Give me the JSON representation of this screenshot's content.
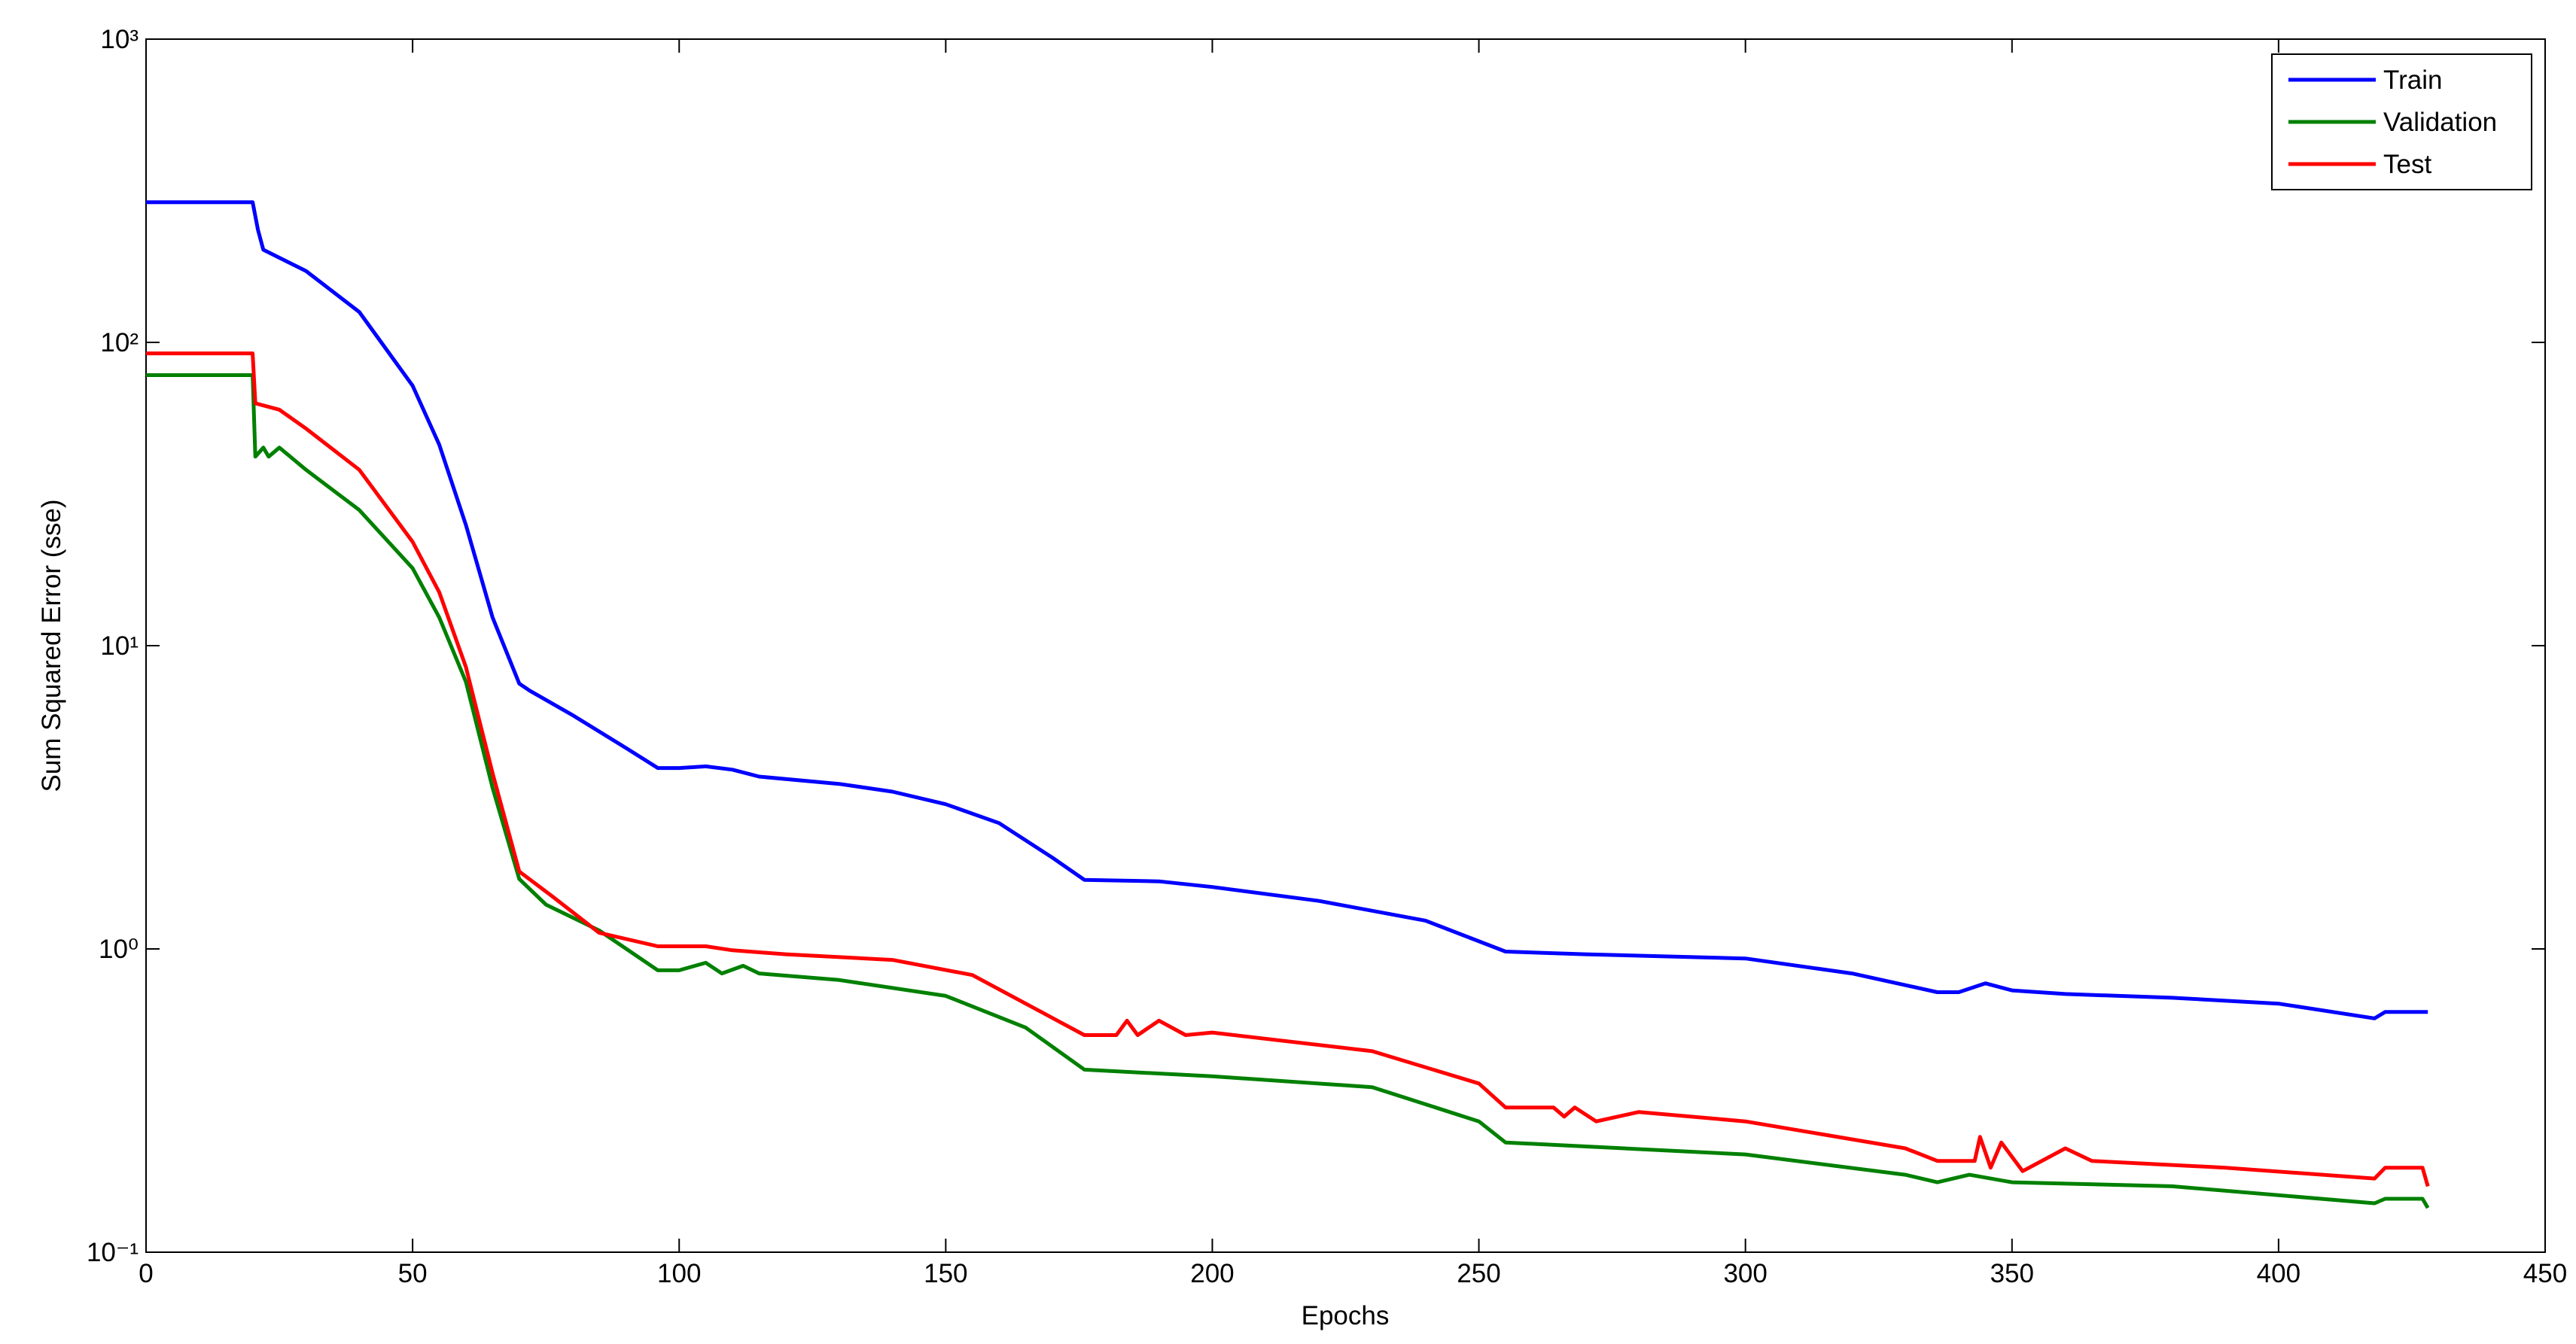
{
  "chart_data": {
    "type": "line",
    "xlabel": "Epochs",
    "ylabel": "Sum Squared Error (sse)",
    "xlim": [
      0,
      450
    ],
    "xticks": [
      0,
      50,
      100,
      150,
      200,
      250,
      300,
      350,
      400,
      450
    ],
    "ylim": [
      0.1,
      1000
    ],
    "yscale": "log",
    "yticks": [
      {
        "value": 0.1,
        "label": "10⁻¹"
      },
      {
        "value": 1,
        "label": "10⁰"
      },
      {
        "value": 10,
        "label": "10¹"
      },
      {
        "value": 100,
        "label": "10²"
      },
      {
        "value": 1000,
        "label": "10³"
      }
    ],
    "grid": false,
    "legend": "upper right",
    "series": [
      {
        "name": "Train",
        "color": "#0000ff",
        "x": [
          0,
          20,
          21,
          22,
          30,
          40,
          50,
          55,
          60,
          65,
          70,
          72,
          80,
          90,
          96,
          100,
          105,
          110,
          115,
          130,
          140,
          150,
          160,
          170,
          176,
          190,
          200,
          220,
          240,
          255,
          270,
          300,
          320,
          336,
          340,
          345,
          350,
          360,
          380,
          400,
          418,
          420,
          428
        ],
        "values": [
          290,
          290,
          235,
          202,
          172,
          126,
          72,
          46,
          25,
          12.4,
          7.5,
          7.1,
          5.9,
          4.6,
          3.95,
          3.95,
          4.0,
          3.9,
          3.7,
          3.5,
          3.3,
          3.0,
          2.6,
          2.0,
          1.69,
          1.67,
          1.6,
          1.44,
          1.24,
          0.98,
          0.96,
          0.93,
          0.83,
          0.72,
          0.72,
          0.77,
          0.73,
          0.71,
          0.69,
          0.66,
          0.59,
          0.62,
          0.62
        ]
      },
      {
        "name": "Validation",
        "color": "#008000",
        "x": [
          0,
          20,
          20.5,
          22,
          23,
          25,
          30,
          40,
          50,
          55,
          60,
          65,
          70,
          75,
          85,
          96,
          100,
          105,
          108,
          112,
          115,
          130,
          150,
          165,
          176,
          200,
          230,
          250,
          255,
          300,
          330,
          336,
          342,
          350,
          380,
          418,
          420,
          427,
          428
        ],
        "values": [
          78,
          78,
          42,
          45,
          42,
          45,
          38,
          28,
          18,
          12.4,
          7.6,
          3.4,
          1.7,
          1.4,
          1.15,
          0.85,
          0.85,
          0.9,
          0.83,
          0.88,
          0.83,
          0.79,
          0.7,
          0.55,
          0.4,
          0.38,
          0.35,
          0.27,
          0.23,
          0.21,
          0.18,
          0.17,
          0.18,
          0.17,
          0.165,
          0.145,
          0.15,
          0.15,
          0.14
        ]
      },
      {
        "name": "Test",
        "color": "#ff0000",
        "x": [
          0,
          20,
          20.5,
          25,
          30,
          40,
          50,
          55,
          60,
          65,
          70,
          76,
          85,
          96,
          105,
          110,
          120,
          140,
          155,
          165,
          176,
          182,
          184,
          186,
          190,
          195,
          200,
          230,
          250,
          255,
          264,
          266,
          268,
          272,
          280,
          300,
          330,
          336,
          343,
          344,
          346,
          348,
          352,
          360,
          365,
          390,
          418,
          420,
          427,
          428
        ],
        "values": [
          92,
          92,
          63,
          60,
          52,
          38,
          22,
          15,
          8.5,
          3.8,
          1.8,
          1.5,
          1.13,
          1.02,
          1.02,
          0.99,
          0.96,
          0.92,
          0.82,
          0.66,
          0.52,
          0.52,
          0.58,
          0.52,
          0.58,
          0.52,
          0.53,
          0.46,
          0.36,
          0.3,
          0.3,
          0.28,
          0.3,
          0.27,
          0.29,
          0.27,
          0.22,
          0.2,
          0.2,
          0.24,
          0.19,
          0.23,
          0.185,
          0.22,
          0.2,
          0.19,
          0.175,
          0.19,
          0.19,
          0.165
        ]
      }
    ]
  }
}
